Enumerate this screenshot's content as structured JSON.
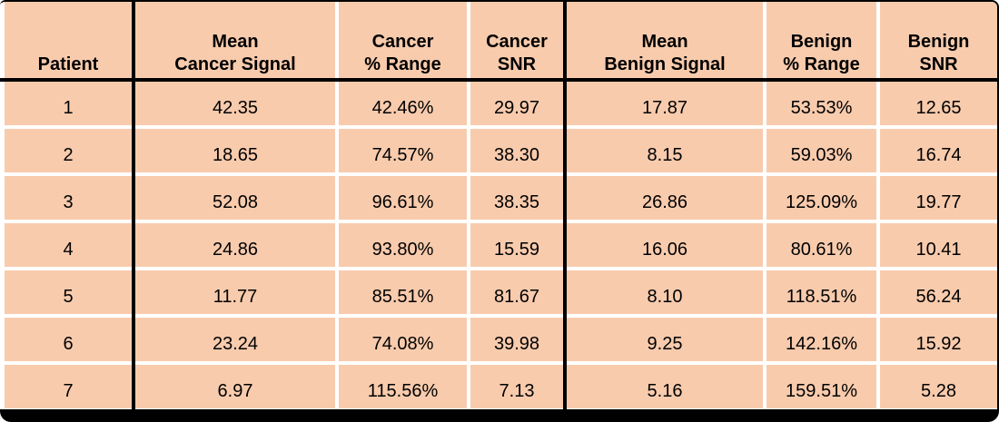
{
  "chart_data": {
    "type": "table",
    "columns": [
      "Patient",
      "Mean\nCancer Signal",
      "Cancer\n% Range",
      "Cancer\nSNR",
      "Mean\nBenign Signal",
      "Benign\n% Range",
      "Benign\nSNR"
    ],
    "rows": [
      [
        "1",
        "42.35",
        "42.46%",
        "29.97",
        "17.87",
        "53.53%",
        "12.65"
      ],
      [
        "2",
        "18.65",
        "74.57%",
        "38.30",
        "8.15",
        "59.03%",
        "16.74"
      ],
      [
        "3",
        "52.08",
        "96.61%",
        "38.35",
        "26.86",
        "125.09%",
        "19.77"
      ],
      [
        "4",
        "24.86",
        "93.80%",
        "15.59",
        "16.06",
        "80.61%",
        "10.41"
      ],
      [
        "5",
        "11.77",
        "85.51%",
        "81.67",
        "8.10",
        "118.51%",
        "56.24"
      ],
      [
        "6",
        "23.24",
        "74.08%",
        "39.98",
        "9.25",
        "142.16%",
        "15.92"
      ],
      [
        "7",
        "6.97",
        "115.56%",
        "7.13",
        "5.16",
        "159.51%",
        "5.28"
      ]
    ],
    "layout": {
      "header_lines": 2,
      "thick_dividers_after_columns": [
        "Patient",
        "Cancer SNR"
      ],
      "grid": "white gaps between cells, black outer frame with thick bottom bar"
    }
  },
  "colors": {
    "cell_fill": "#F8CBAD",
    "grid_line": "#FFFFFF",
    "border": "#000000",
    "text": "#000000"
  }
}
